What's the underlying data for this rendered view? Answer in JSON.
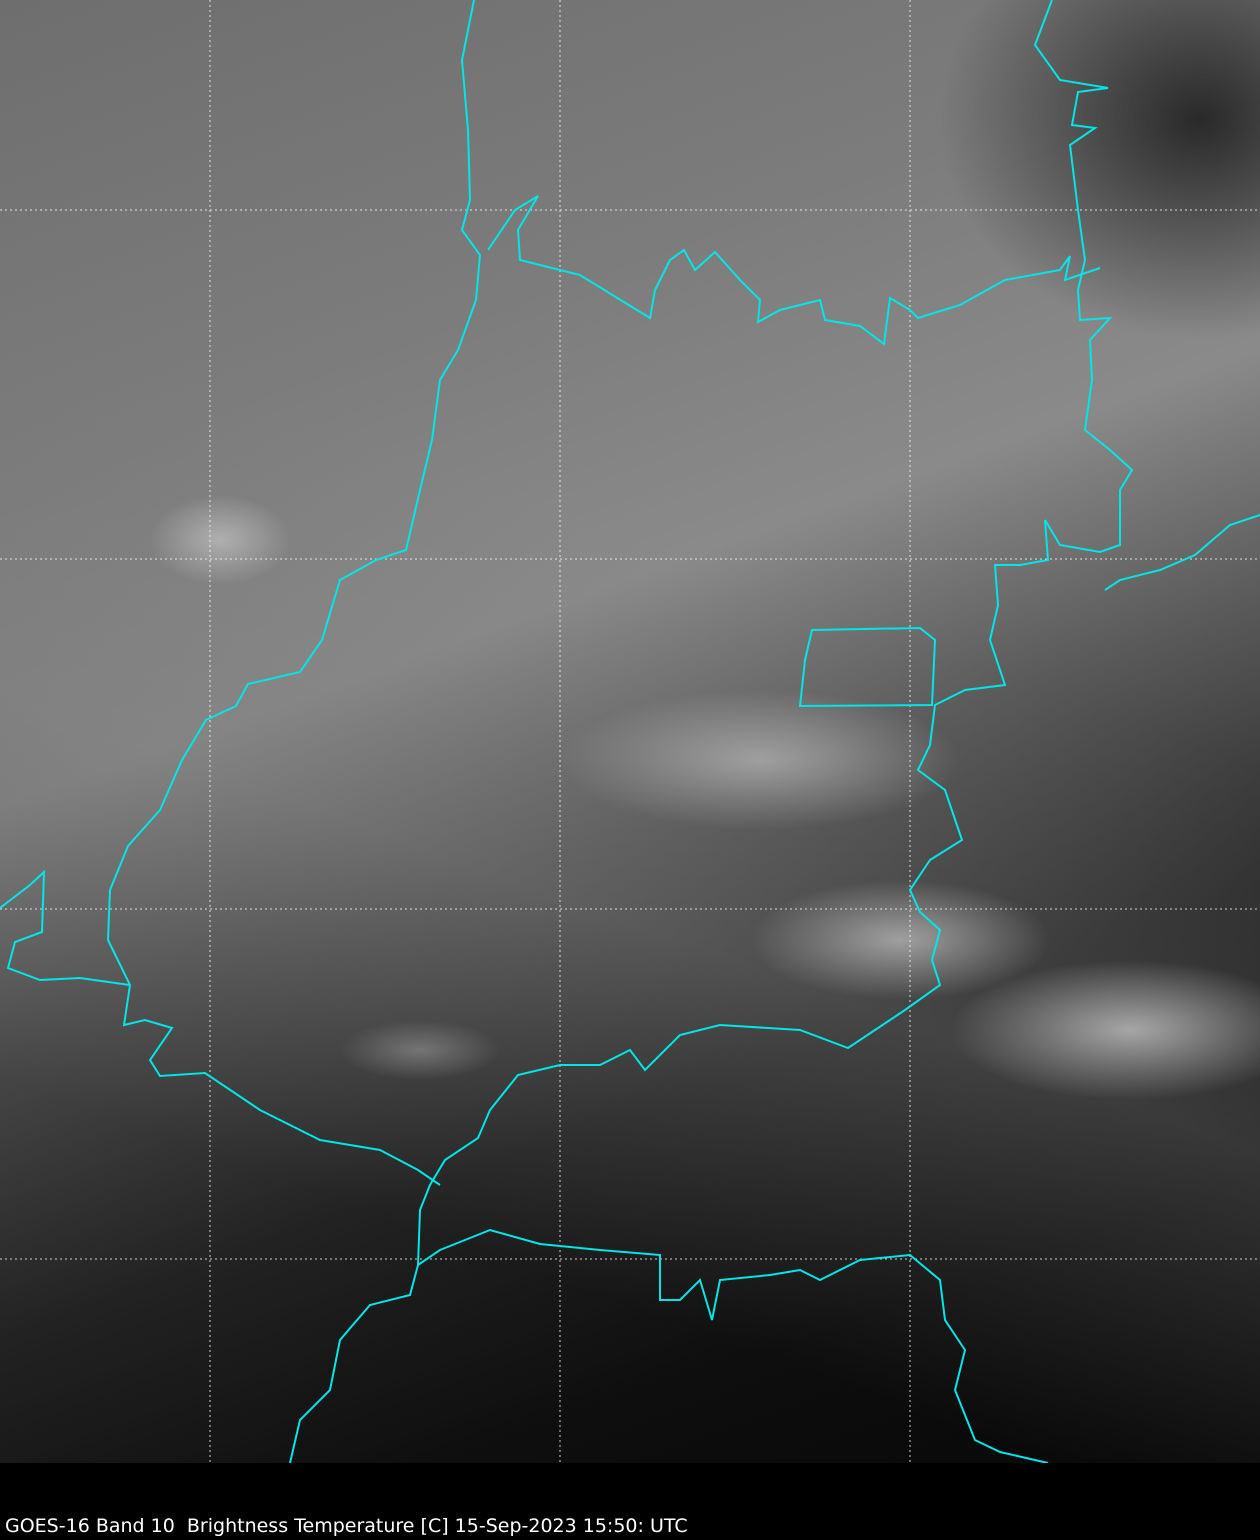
{
  "caption": "GOES-16 Band 10  Brightness Temperature [C] 15-Sep-2023 15:50: UTC",
  "colors": {
    "borders": "#00e5e5",
    "gridlines": "#ffffff",
    "background": "#000000"
  },
  "colormap": "grayscale"
}
